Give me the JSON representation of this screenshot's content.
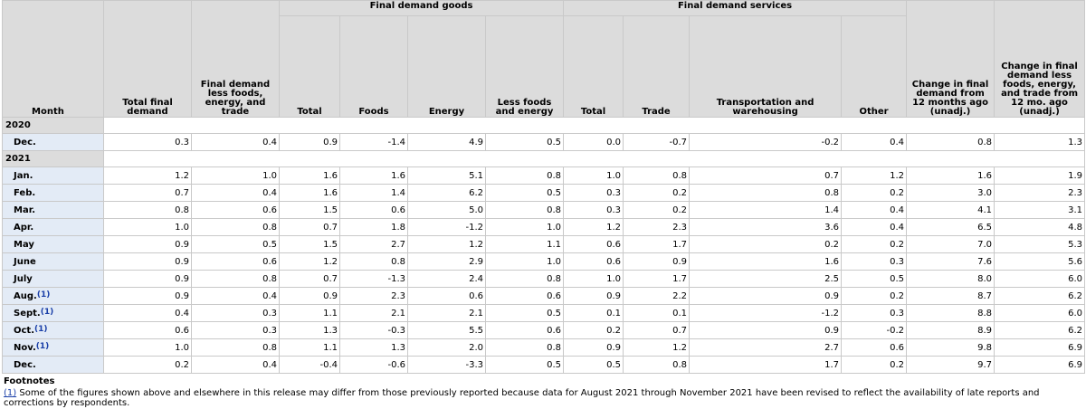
{
  "headers": {
    "month": "Month",
    "total_final_demand": "Total final demand",
    "fd_less_foods_energy_trade": "Final demand less foods, energy, and trade",
    "goods_group": "Final demand goods",
    "services_group": "Final demand services",
    "goods": [
      "Total",
      "Foods",
      "Energy",
      "Less foods and energy"
    ],
    "services": [
      "Total",
      "Trade",
      "Transportation and warehousing",
      "Other"
    ],
    "change_12m": "Change in final demand from 12 months ago (unadj.)",
    "change_less_12m": "Change in final demand less foods, energy, and trade from 12 mo. ago (unadj.)"
  },
  "years": [
    {
      "year": "2020",
      "rows": [
        {
          "month": "Dec.",
          "ref": "",
          "values": [
            "0.3",
            "0.4",
            "0.9",
            "-1.4",
            "4.9",
            "0.5",
            "0.0",
            "-0.7",
            "-0.2",
            "0.4",
            "0.8",
            "1.3"
          ]
        }
      ]
    },
    {
      "year": "2021",
      "rows": [
        {
          "month": "Jan.",
          "ref": "",
          "values": [
            "1.2",
            "1.0",
            "1.6",
            "1.6",
            "5.1",
            "0.8",
            "1.0",
            "0.8",
            "0.7",
            "1.2",
            "1.6",
            "1.9"
          ]
        },
        {
          "month": "Feb.",
          "ref": "",
          "values": [
            "0.7",
            "0.4",
            "1.6",
            "1.4",
            "6.2",
            "0.5",
            "0.3",
            "0.2",
            "0.8",
            "0.2",
            "3.0",
            "2.3"
          ]
        },
        {
          "month": "Mar.",
          "ref": "",
          "values": [
            "0.8",
            "0.6",
            "1.5",
            "0.6",
            "5.0",
            "0.8",
            "0.3",
            "0.2",
            "1.4",
            "0.4",
            "4.1",
            "3.1"
          ]
        },
        {
          "month": "Apr.",
          "ref": "",
          "values": [
            "1.0",
            "0.8",
            "0.7",
            "1.8",
            "-1.2",
            "1.0",
            "1.2",
            "2.3",
            "3.6",
            "0.4",
            "6.5",
            "4.8"
          ]
        },
        {
          "month": "May",
          "ref": "",
          "values": [
            "0.9",
            "0.5",
            "1.5",
            "2.7",
            "1.2",
            "1.1",
            "0.6",
            "1.7",
            "0.2",
            "0.2",
            "7.0",
            "5.3"
          ]
        },
        {
          "month": "June",
          "ref": "",
          "values": [
            "0.9",
            "0.6",
            "1.2",
            "0.8",
            "2.9",
            "1.0",
            "0.6",
            "0.9",
            "1.6",
            "0.3",
            "7.6",
            "5.6"
          ]
        },
        {
          "month": "July",
          "ref": "",
          "values": [
            "0.9",
            "0.8",
            "0.7",
            "-1.3",
            "2.4",
            "0.8",
            "1.0",
            "1.7",
            "2.5",
            "0.5",
            "8.0",
            "6.0"
          ]
        },
        {
          "month": "Aug.",
          "ref": "(1)",
          "values": [
            "0.9",
            "0.4",
            "0.9",
            "2.3",
            "0.6",
            "0.6",
            "0.9",
            "2.2",
            "0.9",
            "0.2",
            "8.7",
            "6.2"
          ]
        },
        {
          "month": "Sept.",
          "ref": "(1)",
          "values": [
            "0.4",
            "0.3",
            "1.1",
            "2.1",
            "2.1",
            "0.5",
            "0.1",
            "0.1",
            "-1.2",
            "0.3",
            "8.8",
            "6.0"
          ]
        },
        {
          "month": "Oct.",
          "ref": "(1)",
          "values": [
            "0.6",
            "0.3",
            "1.3",
            "-0.3",
            "5.5",
            "0.6",
            "0.2",
            "0.7",
            "0.9",
            "-0.2",
            "8.9",
            "6.2"
          ]
        },
        {
          "month": "Nov.",
          "ref": "(1)",
          "values": [
            "1.0",
            "0.8",
            "1.1",
            "1.3",
            "2.0",
            "0.8",
            "0.9",
            "1.2",
            "2.7",
            "0.6",
            "9.8",
            "6.9"
          ]
        },
        {
          "month": "Dec.",
          "ref": "",
          "values": [
            "0.2",
            "0.4",
            "-0.4",
            "-0.6",
            "-3.3",
            "0.5",
            "0.5",
            "0.8",
            "1.7",
            "0.2",
            "9.7",
            "6.9"
          ]
        }
      ]
    }
  ],
  "footnotes": {
    "title": "Footnotes",
    "items": [
      {
        "ref": "(1)",
        "text": " Some of the figures shown above and elsewhere in this release may differ from those previously reported because data for August 2021 through November 2021 have been revised to reflect the availability of late reports and corrections by respondents."
      }
    ]
  }
}
